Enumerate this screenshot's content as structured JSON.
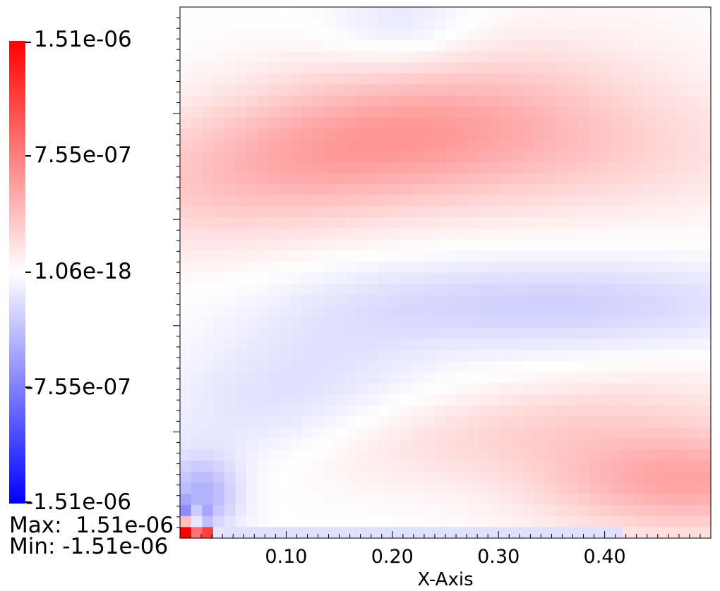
{
  "chart_data": {
    "type": "heatmap",
    "xlabel": "X-Axis",
    "ylabel": "",
    "xlim": [
      0.0,
      0.5
    ],
    "x_ticks": [
      "0.10",
      "0.20",
      "0.30",
      "0.40"
    ],
    "x_tick_values": [
      0.1,
      0.2,
      0.3,
      0.4
    ],
    "colorbar": {
      "labels": [
        "1.51e-06",
        "7.55e-07",
        "1.06e-18",
        "-7.55e-07",
        "-1.51e-06"
      ],
      "min": -1.51e-06,
      "max": 1.51e-06,
      "colors": {
        "low": "#0000ff",
        "mid": "#ffffff",
        "high": "#ff0000"
      }
    },
    "range_text": {
      "max": "Max:  1.51e-06",
      "min": "Min: -1.51e-06"
    },
    "grid": false,
    "legend_position": "left",
    "field": {
      "description_values": "signed field normalized to max 1.51e-06",
      "peaks": [
        {
          "region": "upper-left band",
          "value": 5e-07
        },
        {
          "region": "top center",
          "value": -1.5e-07
        },
        {
          "region": "middle right",
          "value": -2.5e-07
        },
        {
          "region": "lower right",
          "value": 5e-07
        },
        {
          "region": "lower-left blue",
          "value": -1.5e-07
        },
        {
          "region": "bottom-left corner cell",
          "value": 1.51e-06
        }
      ]
    }
  }
}
